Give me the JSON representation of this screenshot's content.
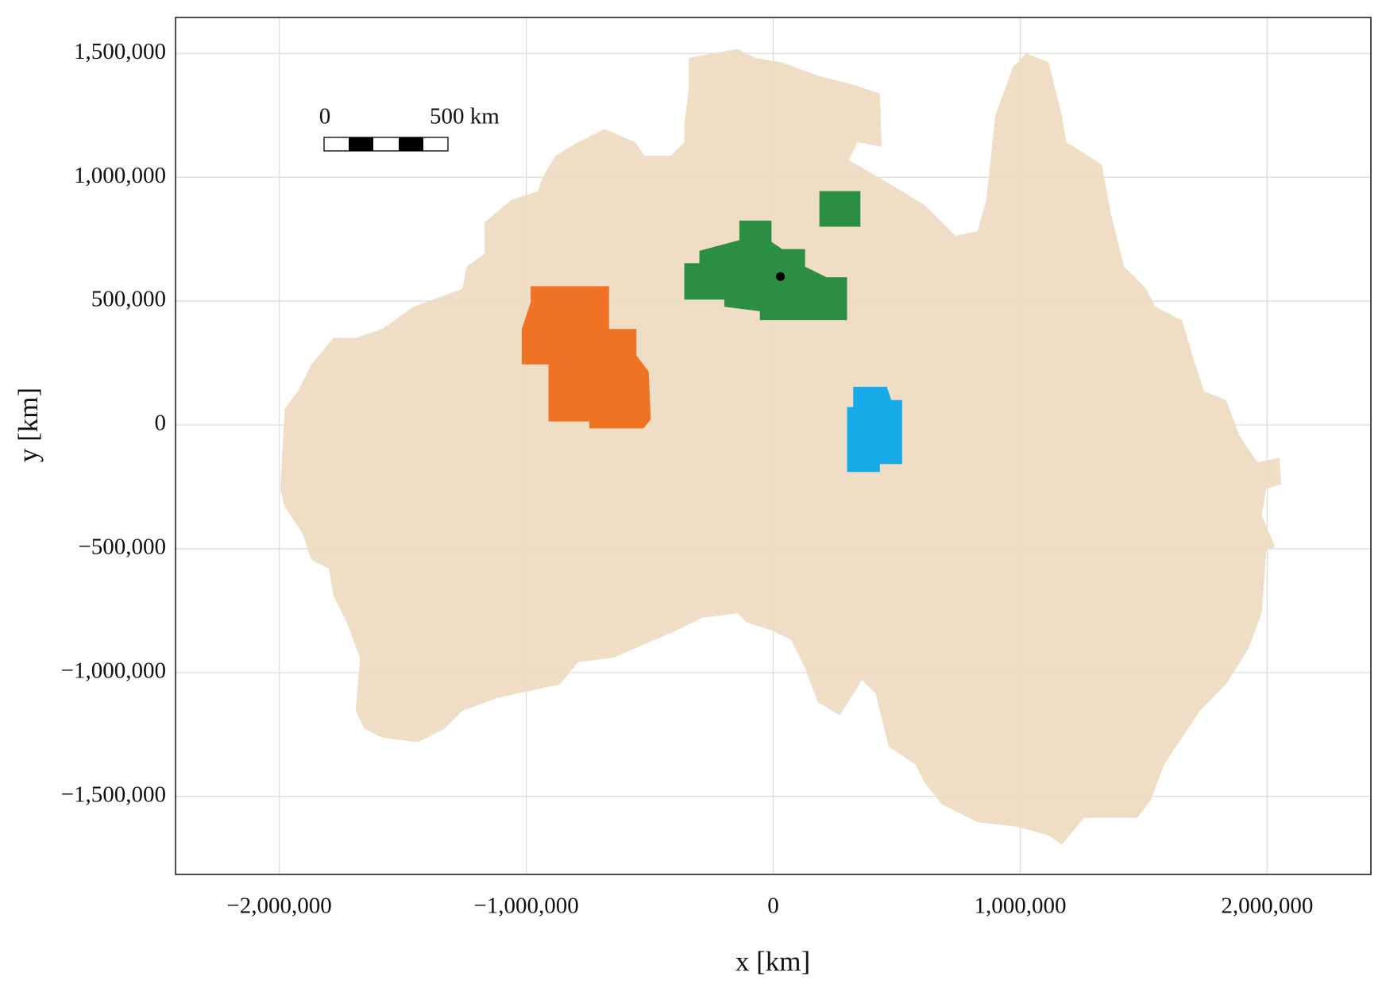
{
  "chart_data": {
    "type": "map",
    "xlabel": "x [km]",
    "ylabel": "y [km]",
    "xlim": [
      -2420000,
      2420000
    ],
    "ylim": [
      -1815000,
      1645000
    ],
    "xticks": [
      {
        "value": -2000000,
        "label": "−2,000,000"
      },
      {
        "value": -1000000,
        "label": "−1,000,000"
      },
      0,
      {
        "value": 1000000,
        "label": "1,000,000"
      },
      {
        "value": 2000000,
        "label": "2,000,000"
      }
    ],
    "yticks": [
      {
        "value": -1500000,
        "label": "−1,500,000"
      },
      {
        "value": -1000000,
        "label": "−1,000,000"
      },
      {
        "value": -500000,
        "label": "−500,000"
      },
      0,
      {
        "value": 500000,
        "label": "500,000"
      },
      {
        "value": 1000000,
        "label": "1,000,000"
      },
      {
        "value": 1500000,
        "label": "1,500,000"
      }
    ],
    "grid": true,
    "scale_bar": {
      "start_label": "0",
      "end_label": "500 km"
    },
    "regions": [
      {
        "color": "#eedcc2",
        "x": [
          -342000,
          -144000,
          -72000,
          36000,
          180000,
          324000,
          432000,
          439000,
          342000,
          306000,
          432000,
          611000,
          737000,
          827000,
          863000,
          899000,
          971000,
          1025000,
          1115000,
          1169000,
          1187000,
          1331000,
          1367000,
          1421000,
          1511000,
          1547000,
          1655000,
          1709000,
          1745000,
          1834000,
          1888000,
          1960000,
          2050000,
          2057000,
          1996000,
          1978000,
          2032000,
          1996000,
          1978000,
          1924000,
          1834000,
          1727000,
          1655000,
          1583000,
          1529000,
          1475000,
          1259000,
          1169000,
          1115000,
          989000,
          827000,
          683000,
          611000,
          576000,
          468000,
          414000,
          360000,
          270000,
          180000,
          126000,
          72000,
          0,
          -108000,
          -144000,
          -288000,
          -396000,
          -522000,
          -647000,
          -791000,
          -863000,
          -1115000,
          -1259000,
          -1331000,
          -1439000,
          -1583000,
          -1655000,
          -1691000,
          -1673000,
          -1727000,
          -1781000,
          -1799000,
          -1870000,
          -1906000,
          -1978000,
          -1996000,
          -1978000,
          -1924000,
          -1870000,
          -1781000,
          -1691000,
          -1583000,
          -1457000,
          -1259000,
          -1241000,
          -1169000,
          -1169000,
          -1061000,
          -953000,
          -935000,
          -881000,
          -791000,
          -683000,
          -558000,
          -522000,
          -414000,
          -360000,
          -360000,
          -342000
        ],
        "y": [
          1482000,
          1518000,
          1482000,
          1464000,
          1410000,
          1374000,
          1338000,
          1123000,
          1141000,
          1069000,
          997000,
          889000,
          764000,
          782000,
          908000,
          1249000,
          1446000,
          1500000,
          1464000,
          1249000,
          1141000,
          1051000,
          854000,
          639000,
          549000,
          477000,
          423000,
          244000,
          136000,
          100000,
          -43000,
          -151000,
          -133000,
          -240000,
          -258000,
          -366000,
          -491000,
          -509000,
          -760000,
          -904000,
          -1047000,
          -1155000,
          -1263000,
          -1371000,
          -1514000,
          -1586000,
          -1586000,
          -1694000,
          -1658000,
          -1622000,
          -1604000,
          -1532000,
          -1442000,
          -1371000,
          -1299000,
          -1084000,
          -1030000,
          -1173000,
          -1119000,
          -976000,
          -868000,
          -832000,
          -797000,
          -761000,
          -779000,
          -832000,
          -886000,
          -940000,
          -958000,
          -1048000,
          -1102000,
          -1155000,
          -1227000,
          -1281000,
          -1263000,
          -1227000,
          -1155000,
          -940000,
          -797000,
          -689000,
          -581000,
          -545000,
          -438000,
          -330000,
          -258000,
          65000,
          136000,
          244000,
          351000,
          351000,
          387000,
          477000,
          549000,
          639000,
          692000,
          818000,
          908000,
          944000,
          997000,
          1087000,
          1141000,
          1195000,
          1141000,
          1087000,
          1087000,
          1141000,
          1213000,
          1356000
        ]
      },
      {
        "color": "#ef6c1c",
        "x": [
          -982000,
          -665000,
          -665000,
          -554000,
          -554000,
          -504000,
          -496000,
          -525000,
          -745000,
          -745000,
          -910000,
          -910000,
          -1018000,
          -1018000,
          -982000
        ],
        "y": [
          560000,
          560000,
          387000,
          387000,
          280000,
          215000,
          22000,
          -14000,
          -14000,
          14000,
          14000,
          244000,
          244000,
          387000,
          495000
        ]
      },
      {
        "color": "#20893b",
        "x": [
          -137000,
          -7000,
          -7000,
          36000,
          129000,
          129000,
          216000,
          299000,
          299000,
          -54000,
          -54000,
          -198000,
          -198000,
          -360000,
          -360000,
          -299000,
          -299000,
          -137000
        ],
        "y": [
          825000,
          825000,
          739000,
          710000,
          710000,
          639000,
          596000,
          596000,
          423000,
          423000,
          459000,
          477000,
          506000,
          506000,
          653000,
          653000,
          703000,
          746000
        ]
      },
      {
        "color": "#20893b",
        "x": [
          187000,
          353000,
          353000,
          187000
        ],
        "y": [
          944000,
          944000,
          800000,
          800000
        ]
      },
      {
        "color": "#0aa6ea",
        "x": [
          324000,
          460000,
          478000,
          522000,
          522000,
          432000,
          432000,
          299000,
          299000,
          324000
        ],
        "y": [
          154000,
          154000,
          100000,
          100000,
          -158000,
          -158000,
          -190000,
          -190000,
          72000,
          72000
        ]
      }
    ],
    "points": {
      "color": "#000000",
      "x": [
        29000
      ],
      "y": [
        599000
      ]
    }
  }
}
